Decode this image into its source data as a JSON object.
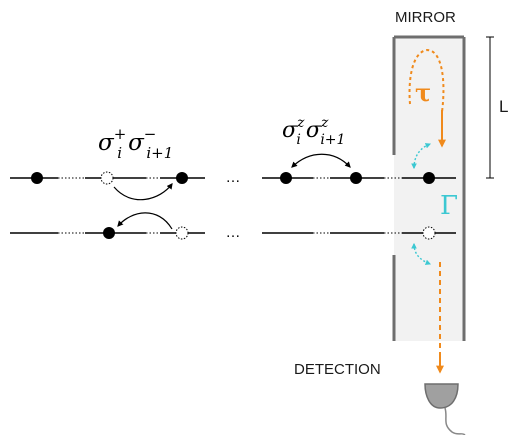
{
  "labels": {
    "mirror": "MIRROR",
    "detection": "DETECTION",
    "length": "L",
    "tau": "τ",
    "gamma": "Γ"
  },
  "operators": {
    "hop": {
      "base1": "σ",
      "sup1": "+",
      "sub1": "i",
      "base2": "σ",
      "sup2": "−",
      "sub2": "i+1"
    },
    "zz": {
      "base1": "σ",
      "sup1": "z",
      "sub1": "i",
      "base2": "σ",
      "sup2": "z",
      "sub2": "i+1"
    }
  },
  "ellipsis": "…",
  "colors": {
    "line": "#000000",
    "cavity_fill": "#f2f2f2",
    "cavity_wall": "#6e6e6e",
    "tau": "#f08a1c",
    "gamma": "#3cc8d2",
    "detector": "#a0a0a0"
  }
}
